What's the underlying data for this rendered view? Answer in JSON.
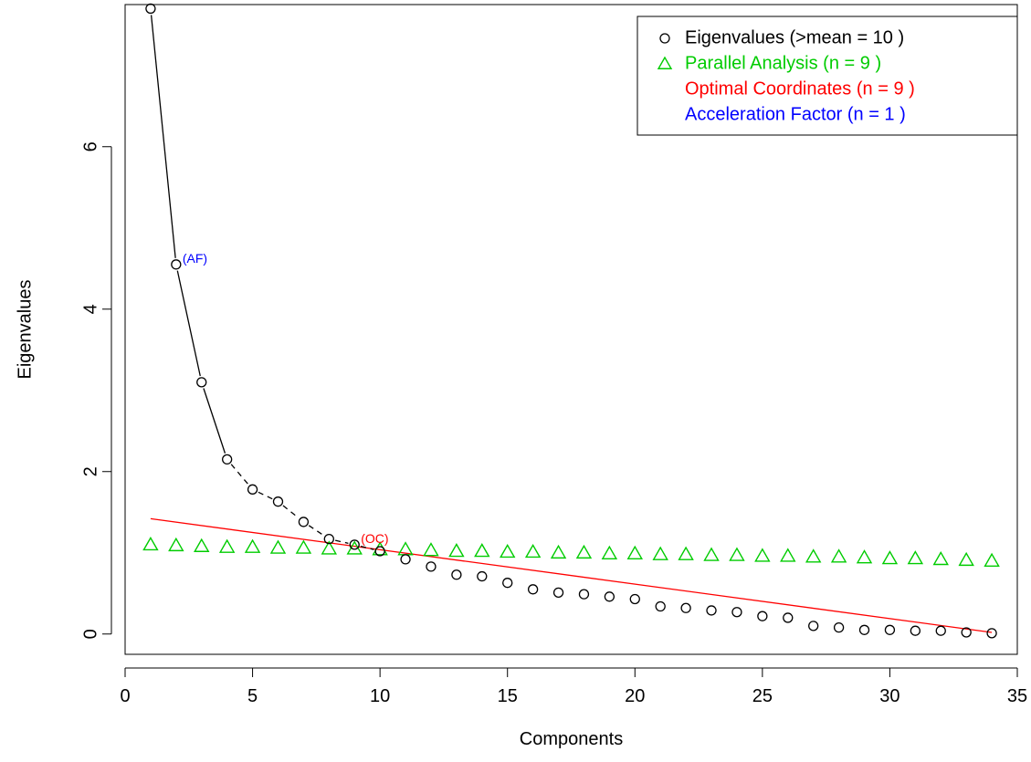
{
  "chart_data": {
    "type": "scatter",
    "title": "",
    "xlabel": "Components",
    "ylabel": "Eigenvalues",
    "xlim": [
      0,
      35
    ],
    "ylim": [
      -0.25,
      7.75
    ],
    "xticks": [
      0,
      5,
      10,
      15,
      20,
      25,
      30,
      35
    ],
    "yticks": [
      0,
      2,
      4,
      6
    ],
    "grid": false,
    "legend_position": "top-right",
    "legend": [
      {
        "label": "Eigenvalues (>mean  =  10 )",
        "marker": "circle",
        "color": "#000000"
      },
      {
        "label": "Parallel Analysis (n =  9 )",
        "marker": "triangle",
        "color": "#00cc00"
      },
      {
        "label": "Optimal Coordinates (n =  9 )",
        "marker": "none",
        "color": "#ff0000"
      },
      {
        "label": "Acceleration Factor (n =  1 )",
        "marker": "none",
        "color": "#0000ff"
      }
    ],
    "eigenvalues": {
      "x": [
        1,
        2,
        3,
        4,
        5,
        6,
        7,
        8,
        9,
        10,
        11,
        12,
        13,
        14,
        15,
        16,
        17,
        18,
        19,
        20,
        21,
        22,
        23,
        24,
        25,
        26,
        27,
        28,
        29,
        30,
        31,
        32,
        33,
        34
      ],
      "y": [
        7.7,
        4.55,
        3.1,
        2.15,
        1.78,
        1.63,
        1.38,
        1.17,
        1.1,
        1.02,
        0.92,
        0.83,
        0.73,
        0.71,
        0.63,
        0.55,
        0.51,
        0.49,
        0.46,
        0.43,
        0.34,
        0.32,
        0.29,
        0.27,
        0.22,
        0.2,
        0.1,
        0.08,
        0.05,
        0.05,
        0.04,
        0.04,
        0.02,
        0.01
      ]
    },
    "parallel_analysis": {
      "x": [
        1,
        2,
        3,
        4,
        5,
        6,
        7,
        8,
        9,
        10,
        11,
        12,
        13,
        14,
        15,
        16,
        17,
        18,
        19,
        20,
        21,
        22,
        23,
        24,
        25,
        26,
        27,
        28,
        29,
        30,
        31,
        32,
        33,
        34
      ],
      "y": [
        1.1,
        1.09,
        1.08,
        1.07,
        1.07,
        1.06,
        1.06,
        1.05,
        1.05,
        1.04,
        1.04,
        1.03,
        1.02,
        1.02,
        1.01,
        1.01,
        1.0,
        1.0,
        0.99,
        0.99,
        0.98,
        0.98,
        0.97,
        0.97,
        0.96,
        0.96,
        0.95,
        0.95,
        0.94,
        0.93,
        0.93,
        0.92,
        0.91,
        0.9
      ]
    },
    "optimal_coordinates_line": {
      "x": [
        1,
        34
      ],
      "y": [
        1.42,
        0.02
      ]
    },
    "scree_curve_segments": [
      [
        1,
        4
      ],
      [
        4,
        10
      ]
    ],
    "annotations": [
      {
        "label": "(AF)",
        "x": 2,
        "y": 4.55,
        "color": "#0000ff"
      },
      {
        "label": "(OC)",
        "x": 9,
        "y": 1.1,
        "color": "#ff0000"
      }
    ]
  }
}
